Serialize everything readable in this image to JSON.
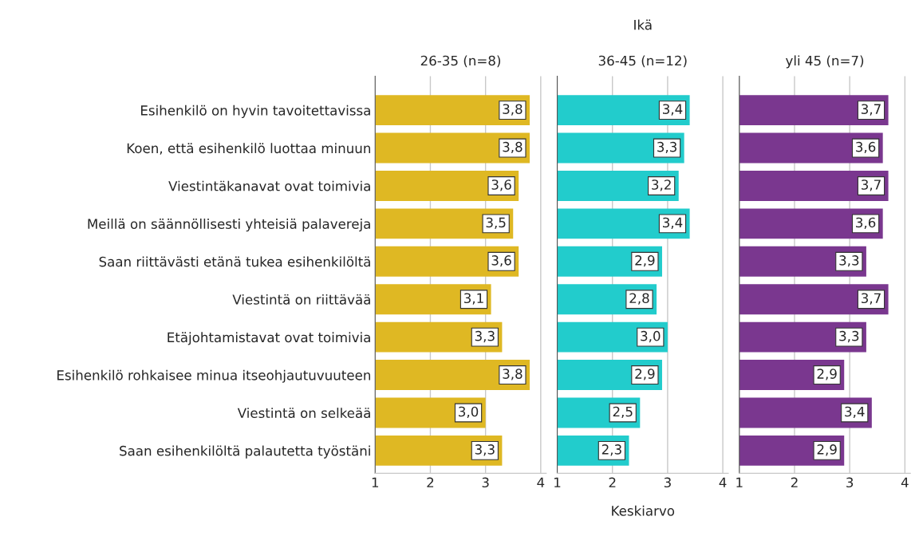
{
  "chart_data": [
    {
      "type": "bar",
      "orientation": "horizontal",
      "subtitle": "26-35 (n=8)",
      "categories": [
        "Esihenkilö on hyvin tavoitettavissa",
        "Koen, että esihenkilö luottaa minuun",
        "Viestintäkanavat ovat toimivia",
        "Meillä on säännöllisesti yhteisiä palavereja",
        "Saan riittävästi etänä tukea esihenkilöltä",
        "Viestintä on riittävää",
        "Etäjohtamistavat ovat toimivia",
        "Esihenkilö rohkaisee minua itseohjautuvuuteen",
        "Viestintä on selkeää",
        "Saan esihenkilöltä palautetta työstäni"
      ],
      "values": [
        3.8,
        3.8,
        3.6,
        3.5,
        3.6,
        3.1,
        3.3,
        3.8,
        3.0,
        3.3
      ],
      "value_labels": [
        "3,8",
        "3,8",
        "3,6",
        "3,5",
        "3,6",
        "3,1",
        "3,3",
        "3,8",
        "3,0",
        "3,3"
      ],
      "color": "#dfb823",
      "xlim": [
        1,
        4.1
      ],
      "xticks": [
        1,
        2,
        3,
        4
      ],
      "grid": "x"
    },
    {
      "type": "bar",
      "orientation": "horizontal",
      "title": "Ikä",
      "subtitle": "36-45 (n=12)",
      "xlabel": "Keskiarvo",
      "categories": [
        null,
        null,
        null,
        null,
        null,
        null,
        null,
        null,
        null,
        null
      ],
      "values": [
        3.4,
        3.3,
        3.2,
        3.4,
        2.9,
        2.8,
        3.0,
        2.9,
        2.5,
        2.3
      ],
      "value_labels": [
        "3,4",
        "3,3",
        "3,2",
        "3,4",
        "2,9",
        "2,8",
        "3,0",
        "2,9",
        "2,5",
        "2,3"
      ],
      "color": "#22cccc",
      "xlim": [
        1,
        4.1
      ],
      "xticks": [
        1,
        2,
        3,
        4
      ],
      "grid": "x",
      "tick_labels": "x"
    },
    {
      "type": "bar",
      "orientation": "horizontal",
      "subtitle": "yli 45 (n=7)",
      "categories": [
        null,
        null,
        null,
        null,
        null,
        null,
        null,
        null,
        null,
        null
      ],
      "values": [
        3.7,
        3.6,
        3.7,
        3.6,
        3.3,
        3.7,
        3.3,
        2.9,
        3.4,
        2.9
      ],
      "value_labels": [
        "3,7",
        "3,6",
        "3,7",
        "3,6",
        "3,3",
        "3,7",
        "3,3",
        "2,9",
        "3,4",
        "2,9"
      ],
      "color": "#7a378f",
      "xlim": [
        1,
        4.1
      ],
      "xticks": [
        1,
        2,
        3,
        4
      ],
      "grid": "x",
      "tick_labels": "x"
    }
  ]
}
